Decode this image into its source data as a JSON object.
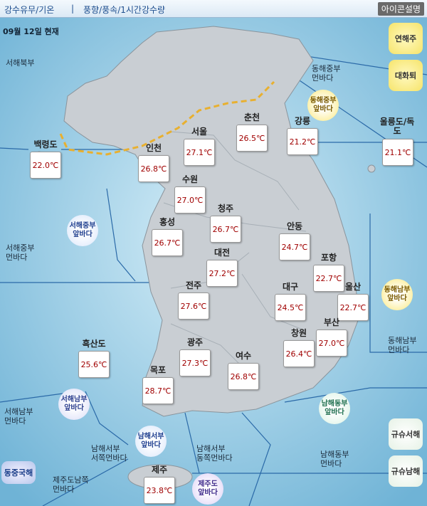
{
  "header": {
    "tab_1": "강수유무/기온",
    "separator": "|",
    "tab_2": "풍향/풍속/1시간강수량",
    "legend_button": "아이콘설명"
  },
  "date": "09월 12일 현재",
  "buttons": {
    "yeonhaeju": "연해주",
    "daehwatoe": "대화퇴",
    "kyushu_west": "규슈서해",
    "kyushu_south": "규슈남해",
    "east_china_sea": "동중국해"
  },
  "near_seas": [
    {
      "lines": [
        "동해중부",
        "앞바다"
      ]
    },
    {
      "lines": [
        "서해중부",
        "앞바다"
      ]
    },
    {
      "lines": [
        "동해남부",
        "앞바다"
      ]
    },
    {
      "lines": [
        "서해남부",
        "앞바다"
      ]
    },
    {
      "lines": [
        "남해서부",
        "앞바다"
      ]
    },
    {
      "lines": [
        "남해동부",
        "앞바다"
      ]
    },
    {
      "lines": [
        "제주도",
        "앞바다"
      ]
    }
  ],
  "far_seas": [
    {
      "lines": [
        "서해북부"
      ]
    },
    {
      "lines": [
        "동해중부",
        "먼바다"
      ]
    },
    {
      "lines": [
        "서해중부",
        "먼바다"
      ]
    },
    {
      "lines": [
        "동해남부",
        "먼바다"
      ]
    },
    {
      "lines": [
        "서해남부",
        "먼바다"
      ]
    },
    {
      "lines": [
        "남해서부",
        "서쪽먼바다"
      ]
    },
    {
      "lines": [
        "남해서부",
        "동쪽먼바다"
      ]
    },
    {
      "lines": [
        "남해동부",
        "먼바다"
      ]
    },
    {
      "lines": [
        "제주도남쪽",
        "먼바다"
      ]
    }
  ],
  "cities": [
    {
      "name": "백령도",
      "temp": "22.0℃"
    },
    {
      "name": "서울",
      "temp": "27.1℃"
    },
    {
      "name": "춘천",
      "temp": "26.5℃"
    },
    {
      "name": "강릉",
      "temp": "21.2℃"
    },
    {
      "name": "울릉도/독도",
      "temp": "21.1℃"
    },
    {
      "name": "인천",
      "temp": "26.8℃"
    },
    {
      "name": "수원",
      "temp": "27.0℃"
    },
    {
      "name": "청주",
      "temp": "26.7℃"
    },
    {
      "name": "홍성",
      "temp": "26.7℃"
    },
    {
      "name": "안동",
      "temp": "24.7℃"
    },
    {
      "name": "대전",
      "temp": "27.2℃"
    },
    {
      "name": "포항",
      "temp": "22.7℃"
    },
    {
      "name": "울산",
      "temp": "22.7℃"
    },
    {
      "name": "전주",
      "temp": "27.6℃"
    },
    {
      "name": "대구",
      "temp": "24.5℃"
    },
    {
      "name": "부산",
      "temp": "27.0℃"
    },
    {
      "name": "흑산도",
      "temp": "25.6℃"
    },
    {
      "name": "광주",
      "temp": "27.3℃"
    },
    {
      "name": "창원",
      "temp": "26.4℃"
    },
    {
      "name": "여수",
      "temp": "26.8℃"
    },
    {
      "name": "목포",
      "temp": "28.7℃"
    },
    {
      "name": "제주",
      "temp": "23.8℃"
    }
  ]
}
